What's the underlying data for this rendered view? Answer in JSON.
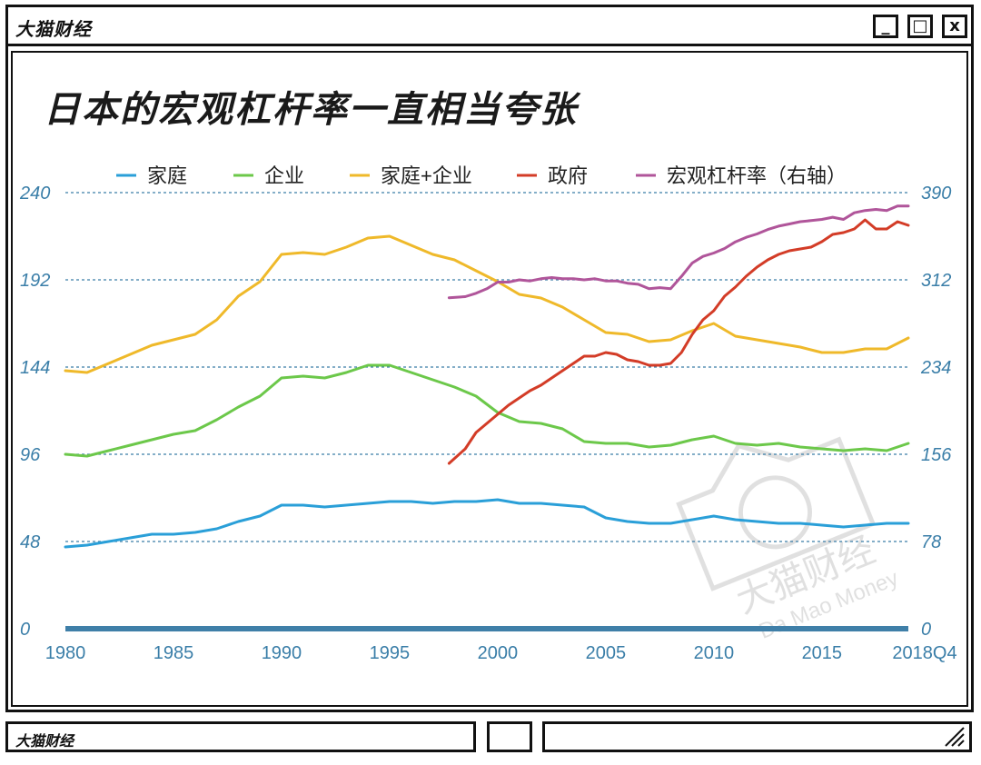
{
  "window": {
    "brand": "大猫财经",
    "buttons": {
      "minimize": "_",
      "maximize": "□",
      "close": "x"
    }
  },
  "heading": "日本的宏观杠杆率一直相当夸张",
  "statusbar": {
    "brand": "大猫财经"
  },
  "watermark": {
    "cn": "大猫财经",
    "en": "Da Mao Money"
  },
  "colors": {
    "household": "#2a9fd8",
    "corporate": "#6cc84a",
    "household_corporate": "#efb92a",
    "government": "#d33c27",
    "macro_leverage": "#b0559a",
    "axis": "#3a7ea8",
    "grid": "#3a7ea8"
  },
  "chart_data": {
    "type": "line",
    "title": "日本的宏观杠杆率一直相当夸张",
    "x_tick_labels": [
      "1980",
      "1985",
      "1990",
      "1995",
      "2000",
      "2005",
      "2010",
      "2015",
      "2018Q4"
    ],
    "x_ticks": [
      1980,
      1985,
      1990,
      1995,
      2000,
      2005,
      2010,
      2015,
      2019
    ],
    "xlim": [
      1980,
      2019
    ],
    "ylim_left": [
      0,
      240
    ],
    "ylim_right": [
      0,
      390
    ],
    "y_left_ticks": [
      "0",
      "48",
      "96",
      "144",
      "192",
      "240"
    ],
    "y_right_ticks": [
      "0",
      "78",
      "156",
      "234",
      "312",
      "390"
    ],
    "y_left_tick_values": [
      0,
      48,
      96,
      144,
      192,
      240
    ],
    "grid": "horizontal dashed",
    "legend_position": "top",
    "series": [
      {
        "name": "家庭",
        "axis": "left",
        "color_key": "household",
        "x": [
          1980,
          1981,
          1982,
          1983,
          1984,
          1985,
          1986,
          1987,
          1988,
          1989,
          1990,
          1991,
          1992,
          1993,
          1994,
          1995,
          1996,
          1997,
          1998,
          1999,
          2000,
          2001,
          2002,
          2003,
          2004,
          2005,
          2006,
          2007,
          2008,
          2009,
          2010,
          2011,
          2012,
          2013,
          2014,
          2015,
          2016,
          2017,
          2018,
          2019
        ],
        "y": [
          45,
          46,
          48,
          50,
          52,
          52,
          53,
          55,
          59,
          62,
          68,
          68,
          67,
          68,
          69,
          70,
          70,
          69,
          70,
          70,
          71,
          69,
          69,
          68,
          67,
          61,
          59,
          58,
          58,
          60,
          62,
          60,
          59,
          58,
          58,
          57,
          56,
          57,
          58,
          58
        ]
      },
      {
        "name": "企业",
        "axis": "left",
        "color_key": "corporate",
        "x": [
          1980,
          1981,
          1982,
          1983,
          1984,
          1985,
          1986,
          1987,
          1988,
          1989,
          1990,
          1991,
          1992,
          1993,
          1994,
          1995,
          1996,
          1997,
          1998,
          1999,
          2000,
          2001,
          2002,
          2003,
          2004,
          2005,
          2006,
          2007,
          2008,
          2009,
          2010,
          2011,
          2012,
          2013,
          2014,
          2015,
          2016,
          2017,
          2018,
          2019
        ],
        "y": [
          96,
          95,
          98,
          101,
          104,
          107,
          109,
          115,
          122,
          128,
          138,
          139,
          138,
          141,
          145,
          145,
          141,
          137,
          133,
          128,
          119,
          114,
          113,
          110,
          103,
          102,
          102,
          100,
          101,
          104,
          106,
          102,
          101,
          102,
          100,
          99,
          98,
          99,
          98,
          102
        ]
      },
      {
        "name": "家庭+企业",
        "axis": "left",
        "color_key": "household_corporate",
        "x": [
          1980,
          1981,
          1982,
          1983,
          1984,
          1985,
          1986,
          1987,
          1988,
          1989,
          1990,
          1991,
          1992,
          1993,
          1994,
          1995,
          1996,
          1997,
          1998,
          1999,
          2000,
          2001,
          2002,
          2003,
          2004,
          2005,
          2006,
          2007,
          2008,
          2009,
          2010,
          2011,
          2012,
          2013,
          2014,
          2015,
          2016,
          2017,
          2018,
          2019
        ],
        "y": [
          142,
          141,
          146,
          151,
          156,
          159,
          162,
          170,
          183,
          191,
          206,
          207,
          206,
          210,
          215,
          216,
          211,
          206,
          203,
          197,
          191,
          184,
          182,
          177,
          170,
          163,
          162,
          158,
          159,
          164,
          168,
          161,
          159,
          157,
          155,
          152,
          152,
          154,
          154,
          160
        ]
      },
      {
        "name": "政府",
        "axis": "left",
        "color_key": "government",
        "x": [
          1997.75,
          1998.5,
          1999,
          1999.5,
          2000,
          2000.5,
          2001,
          2001.5,
          2002,
          2002.5,
          2003,
          2003.5,
          2004,
          2004.5,
          2005,
          2005.5,
          2006,
          2006.5,
          2007,
          2007.5,
          2008,
          2008.5,
          2009,
          2009.5,
          2010,
          2010.5,
          2011,
          2011.5,
          2012,
          2012.5,
          2013,
          2013.5,
          2014,
          2014.5,
          2015,
          2015.5,
          2016,
          2016.5,
          2017,
          2017.5,
          2018,
          2018.5,
          2019
        ],
        "y": [
          91,
          99,
          108,
          113,
          118,
          123,
          127,
          131,
          134,
          138,
          142,
          146,
          150,
          150,
          152,
          151,
          148,
          147,
          145,
          145,
          146,
          152,
          162,
          170,
          175,
          183,
          188,
          194,
          199,
          203,
          206,
          208,
          209,
          210,
          213,
          217,
          218,
          220,
          225,
          220,
          220,
          224,
          222
        ]
      },
      {
        "name": "宏观杠杆率（右轴）",
        "axis": "right",
        "color_key": "macro_leverage",
        "x": [
          1997.75,
          1998.5,
          1999,
          1999.5,
          2000,
          2000.5,
          2001,
          2001.5,
          2002,
          2002.5,
          2003,
          2003.5,
          2004,
          2004.5,
          2005,
          2005.5,
          2006,
          2006.5,
          2007,
          2007.5,
          2008,
          2008.5,
          2009,
          2009.5,
          2010,
          2010.5,
          2011,
          2011.5,
          2012,
          2012.5,
          2013,
          2013.5,
          2014,
          2014.5,
          2015,
          2015.5,
          2016,
          2016.5,
          2017,
          2017.5,
          2018,
          2018.5,
          2019
        ],
        "y": [
          296,
          297,
          300,
          304,
          310,
          310,
          312,
          311,
          313,
          314,
          313,
          313,
          312,
          313,
          311,
          311,
          309,
          308,
          304,
          305,
          304,
          315,
          327,
          333,
          336,
          340,
          346,
          350,
          353,
          357,
          360,
          362,
          364,
          365,
          366,
          368,
          366,
          372,
          374,
          375,
          374,
          378,
          378
        ]
      }
    ]
  }
}
